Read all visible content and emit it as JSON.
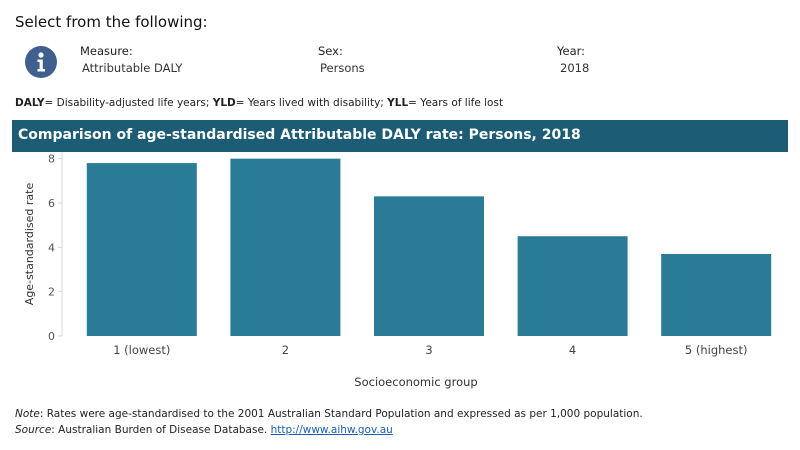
{
  "header": {
    "title": "Select from the following:",
    "filters": [
      {
        "label": "Measure:",
        "value": "Attributable DALY"
      },
      {
        "label": "Sex:",
        "value": "Persons"
      },
      {
        "label": "Year:",
        "value": "2018"
      }
    ]
  },
  "legend": {
    "items": [
      {
        "abbr": "DALY",
        "text": "= Disability-adjusted life years; "
      },
      {
        "abbr": "YLD",
        "text": "= Years lived with disability; "
      },
      {
        "abbr": "YLL",
        "text": "= Years of life lost"
      }
    ]
  },
  "chart_data": {
    "type": "bar",
    "title": "Comparison of age-standardised Attributable DALY rate:  Persons, 2018",
    "xlabel": "Socioeconomic group",
    "ylabel": "Age-standardised rate",
    "categories": [
      "1 (lowest)",
      "2",
      "3",
      "4",
      "5 (highest)"
    ],
    "values": [
      7.8,
      8.0,
      6.3,
      4.5,
      3.7
    ],
    "ylim": [
      0,
      8.3
    ],
    "yticks": [
      0,
      2,
      4,
      6,
      8
    ],
    "bar_color": "#2a7b96",
    "title_bar_color": "#1c5d75",
    "grid": false
  },
  "notes": {
    "note_label": "Note",
    "note_text": ": Rates were age-standardised to the 2001 Australian Standard Population and expressed as per 1,000 population.",
    "source_label": "Source",
    "source_text": ": Australian Burden of Disease Database. ",
    "source_link": "http://www.aihw.gov.au"
  },
  "icons": {
    "info": "info-icon"
  }
}
